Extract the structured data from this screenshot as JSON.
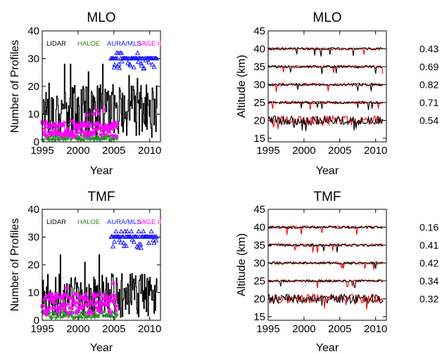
{
  "chart_data": [
    {
      "type": "line",
      "title": "MLO",
      "xlabel": "Year",
      "ylabel": "Number of Profiles",
      "xlim": [
        1995,
        2011.5
      ],
      "ylim": [
        0,
        40
      ],
      "xticks": [
        1995,
        2000,
        2005,
        2010
      ],
      "yticks": [
        0,
        10,
        20,
        30,
        40
      ],
      "legend": [
        "LIDAR",
        "HALOE",
        "AURA/MLS",
        "SAGE II"
      ],
      "legend_position": "top",
      "series": [
        {
          "name": "LIDAR",
          "color": "#000000",
          "style": "steps",
          "x_range": [
            1995,
            2011
          ],
          "level": 10
        },
        {
          "name": "HALOE",
          "color": "#2e8b2e",
          "style": "markers",
          "marker": "plus",
          "x_range": [
            1995,
            2005.5
          ],
          "level": 1.5
        },
        {
          "name": "AURA/MLS",
          "color": "#1a1aff",
          "style": "markers",
          "marker": "triangle",
          "x_range": [
            2004.6,
            2011
          ],
          "level": 30
        },
        {
          "name": "SAGE II",
          "color": "#ff00ff",
          "style": "markers",
          "marker": "star",
          "x_range": [
            1995,
            2005.5
          ],
          "level": 4.5
        }
      ]
    },
    {
      "type": "line",
      "title": "MLO",
      "xlabel": "Year",
      "ylabel": "Altitude (km)",
      "xlim": [
        1995,
        2011.5
      ],
      "ylim": [
        14,
        45
      ],
      "xticks": [
        1995,
        2000,
        2005,
        2010
      ],
      "yticks": [
        15,
        20,
        25,
        30,
        35,
        40,
        45
      ],
      "correlations": [
        {
          "altitude": 40,
          "r": "0.43"
        },
        {
          "altitude": 35,
          "r": "0.69"
        },
        {
          "altitude": 30,
          "r": "0.82"
        },
        {
          "altitude": 25,
          "r": "0.71"
        },
        {
          "altitude": 20,
          "r": "0.54"
        }
      ],
      "series_colors": [
        "#ff0000",
        "#000000"
      ]
    },
    {
      "type": "line",
      "title": "TMF",
      "xlabel": "Year",
      "ylabel": "Number of Profiles",
      "xlim": [
        1995,
        2011.5
      ],
      "ylim": [
        0,
        40
      ],
      "xticks": [
        1995,
        2000,
        2005,
        2010
      ],
      "yticks": [
        0,
        10,
        20,
        30,
        40
      ],
      "legend": [
        "LIDAR",
        "HALOE",
        "AURA/MLS",
        "SAGE II"
      ],
      "legend_position": "top",
      "series": [
        {
          "name": "LIDAR",
          "color": "#000000",
          "style": "steps",
          "x_range": [
            1995,
            2011
          ],
          "level": 8
        },
        {
          "name": "HALOE",
          "color": "#2e8b2e",
          "style": "markers",
          "marker": "plus",
          "x_range": [
            1995,
            2005.5
          ],
          "level": 2
        },
        {
          "name": "AURA/MLS",
          "color": "#1a1aff",
          "style": "markers",
          "marker": "triangle",
          "x_range": [
            2004.6,
            2011
          ],
          "level": 30
        },
        {
          "name": "SAGE II",
          "color": "#ff00ff",
          "style": "markers",
          "marker": "star",
          "x_range": [
            1995,
            2005.5
          ],
          "level": 6
        }
      ]
    },
    {
      "type": "line",
      "title": "TMF",
      "xlabel": "Year",
      "ylabel": "Altitude (km)",
      "xlim": [
        1995,
        2011.5
      ],
      "ylim": [
        14,
        45
      ],
      "xticks": [
        1995,
        2000,
        2005,
        2010
      ],
      "yticks": [
        15,
        20,
        25,
        30,
        35,
        40,
        45
      ],
      "correlations": [
        {
          "altitude": 40,
          "r": "0.16"
        },
        {
          "altitude": 35,
          "r": "0.41"
        },
        {
          "altitude": 30,
          "r": "0.42"
        },
        {
          "altitude": 25,
          "r": "0.34"
        },
        {
          "altitude": 20,
          "r": "0.32"
        }
      ],
      "series_colors": [
        "#ff0000",
        "#000000"
      ]
    }
  ]
}
